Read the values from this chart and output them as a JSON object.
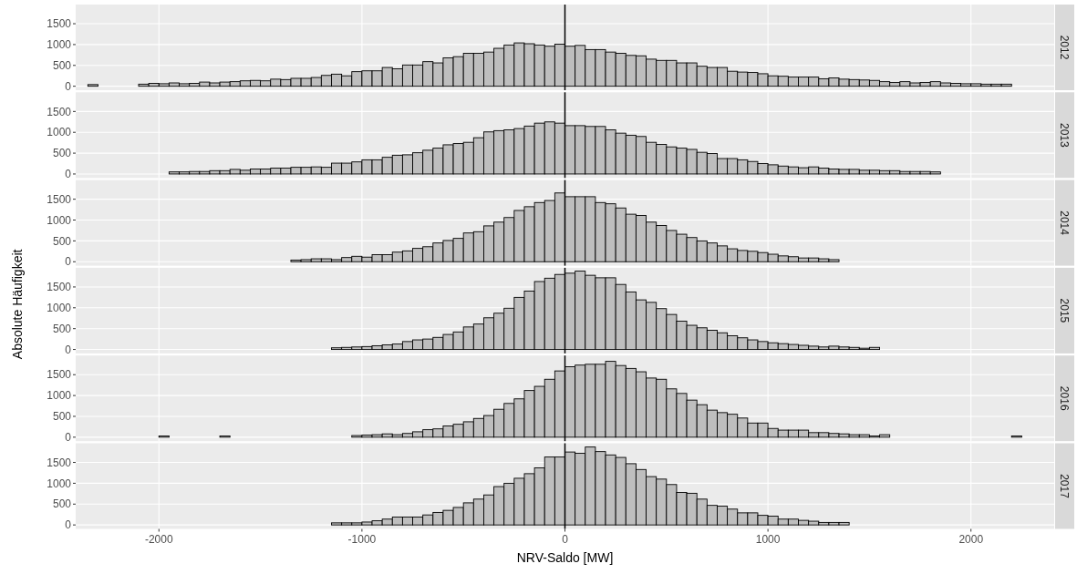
{
  "chart_data": [
    {
      "type": "histogram",
      "title": "2012",
      "color": "#bebebe",
      "tick_labels": "y",
      "grid": true,
      "xlim": [
        -2410,
        2410
      ],
      "ylim": [
        -95,
        1960
      ],
      "xticks": [
        -2000,
        -1000,
        0,
        1000,
        2000
      ],
      "yticks": [
        0,
        500,
        1000,
        1500
      ],
      "ref_lines": [
        {
          "axis": "x",
          "value": 0,
          "color": "#000000"
        }
      ],
      "bins": [
        -2400,
        -2350,
        -2300,
        -2250,
        -2200,
        -2150,
        -2100,
        -2050,
        -2000,
        -1950,
        -1900,
        -1850,
        -1800,
        -1750,
        -1700,
        -1650,
        -1600,
        -1550,
        -1500,
        -1450,
        -1400,
        -1350,
        -1300,
        -1250,
        -1200,
        -1150,
        -1100,
        -1050,
        -1000,
        -950,
        -900,
        -850,
        -800,
        -750,
        -700,
        -650,
        -600,
        -550,
        -500,
        -450,
        -400,
        -350,
        -300,
        -250,
        -200,
        -150,
        -100,
        -50,
        0,
        50,
        100,
        150,
        200,
        250,
        300,
        350,
        400,
        450,
        500,
        550,
        600,
        650,
        700,
        750,
        800,
        850,
        900,
        950,
        1000,
        1050,
        1100,
        1150,
        1200,
        1250,
        1300,
        1350,
        1400,
        1450,
        1500,
        1550,
        1600,
        1650,
        1700,
        1750,
        1800,
        1850,
        1900,
        1950,
        2000,
        2050,
        2100,
        2150,
        2200,
        2250,
        2300,
        2350,
        2400
      ],
      "values": [
        0,
        40,
        0,
        0,
        0,
        0,
        50,
        70,
        60,
        80,
        60,
        70,
        100,
        80,
        100,
        110,
        130,
        140,
        130,
        170,
        160,
        190,
        190,
        210,
        260,
        290,
        250,
        350,
        370,
        370,
        450,
        420,
        510,
        510,
        590,
        560,
        680,
        710,
        790,
        790,
        820,
        910,
        990,
        1040,
        1020,
        990,
        960,
        1010,
        960,
        980,
        880,
        880,
        820,
        790,
        740,
        730,
        650,
        620,
        620,
        560,
        560,
        480,
        450,
        450,
        360,
        340,
        330,
        300,
        250,
        240,
        220,
        220,
        220,
        180,
        200,
        170,
        160,
        150,
        140,
        110,
        90,
        110,
        80,
        90,
        110,
        80,
        70,
        60,
        60,
        50,
        50,
        50,
        0,
        0,
        0,
        0
      ]
    },
    {
      "type": "histogram",
      "title": "2013",
      "color": "#bebebe",
      "tick_labels": "y",
      "grid": true,
      "xlim": [
        -2410,
        2410
      ],
      "ylim": [
        -95,
        1960
      ],
      "xticks": [
        -2000,
        -1000,
        0,
        1000,
        2000
      ],
      "yticks": [
        0,
        500,
        1000,
        1500
      ],
      "ref_lines": [
        {
          "axis": "x",
          "value": 0,
          "color": "#000000"
        }
      ],
      "bins": [
        -2400,
        -2350,
        -2300,
        -2250,
        -2200,
        -2150,
        -2100,
        -2050,
        -2000,
        -1950,
        -1900,
        -1850,
        -1800,
        -1750,
        -1700,
        -1650,
        -1600,
        -1550,
        -1500,
        -1450,
        -1400,
        -1350,
        -1300,
        -1250,
        -1200,
        -1150,
        -1100,
        -1050,
        -1000,
        -950,
        -900,
        -850,
        -800,
        -750,
        -700,
        -650,
        -600,
        -550,
        -500,
        -450,
        -400,
        -350,
        -300,
        -250,
        -200,
        -150,
        -100,
        -50,
        0,
        50,
        100,
        150,
        200,
        250,
        300,
        350,
        400,
        450,
        500,
        550,
        600,
        650,
        700,
        750,
        800,
        850,
        900,
        950,
        1000,
        1050,
        1100,
        1150,
        1200,
        1250,
        1300,
        1350,
        1400,
        1450,
        1500,
        1550,
        1600,
        1650,
        1700,
        1750,
        1800,
        1850,
        1900,
        1950,
        2000,
        2050,
        2100,
        2150,
        2200,
        2250,
        2300,
        2350,
        2400
      ],
      "values": [
        0,
        0,
        0,
        0,
        0,
        0,
        0,
        0,
        0,
        50,
        50,
        60,
        60,
        80,
        80,
        110,
        90,
        120,
        120,
        140,
        140,
        160,
        160,
        170,
        160,
        260,
        260,
        290,
        340,
        340,
        400,
        450,
        460,
        510,
        570,
        620,
        700,
        730,
        760,
        870,
        1010,
        1040,
        1060,
        1090,
        1150,
        1220,
        1250,
        1220,
        1160,
        1160,
        1140,
        1140,
        1060,
        980,
        930,
        900,
        760,
        710,
        650,
        620,
        590,
        520,
        490,
        370,
        370,
        340,
        300,
        250,
        220,
        190,
        170,
        150,
        170,
        140,
        120,
        110,
        110,
        90,
        90,
        80,
        80,
        60,
        60,
        60,
        50,
        0,
        0,
        0,
        0,
        0,
        0,
        0,
        0,
        0,
        0,
        0
      ]
    },
    {
      "type": "histogram",
      "title": "2014",
      "color": "#bebebe",
      "tick_labels": "y",
      "grid": true,
      "xlim": [
        -2410,
        2410
      ],
      "ylim": [
        -95,
        1960
      ],
      "xticks": [
        -2000,
        -1000,
        0,
        1000,
        2000
      ],
      "yticks": [
        0,
        500,
        1000,
        1500
      ],
      "ref_lines": [
        {
          "axis": "x",
          "value": 0,
          "color": "#000000"
        }
      ],
      "bins": [
        -2400,
        -2350,
        -2300,
        -2250,
        -2200,
        -2150,
        -2100,
        -2050,
        -2000,
        -1950,
        -1900,
        -1850,
        -1800,
        -1750,
        -1700,
        -1650,
        -1600,
        -1550,
        -1500,
        -1450,
        -1400,
        -1350,
        -1300,
        -1250,
        -1200,
        -1150,
        -1100,
        -1050,
        -1000,
        -950,
        -900,
        -850,
        -800,
        -750,
        -700,
        -650,
        -600,
        -550,
        -500,
        -450,
        -400,
        -350,
        -300,
        -250,
        -200,
        -150,
        -100,
        -50,
        0,
        50,
        100,
        150,
        200,
        250,
        300,
        350,
        400,
        450,
        500,
        550,
        600,
        650,
        700,
        750,
        800,
        850,
        900,
        950,
        1000,
        1050,
        1100,
        1150,
        1200,
        1250,
        1300,
        1350,
        1400,
        1450,
        1500,
        1550,
        1600,
        1650,
        1700,
        1750,
        1800,
        1850,
        1900,
        1950,
        2000,
        2050,
        2100,
        2150,
        2200,
        2250,
        2300,
        2350,
        2400
      ],
      "values": [
        0,
        0,
        0,
        0,
        0,
        0,
        0,
        0,
        0,
        0,
        0,
        0,
        0,
        0,
        0,
        0,
        0,
        0,
        0,
        0,
        0,
        40,
        50,
        70,
        70,
        50,
        100,
        130,
        110,
        170,
        170,
        230,
        260,
        320,
        360,
        450,
        510,
        560,
        690,
        720,
        860,
        950,
        1060,
        1230,
        1320,
        1420,
        1470,
        1650,
        1560,
        1560,
        1560,
        1420,
        1390,
        1290,
        1140,
        1110,
        950,
        870,
        750,
        660,
        580,
        500,
        450,
        380,
        310,
        270,
        250,
        220,
        180,
        140,
        120,
        90,
        90,
        70,
        50,
        0,
        0,
        0,
        0,
        0,
        0,
        0,
        0,
        0,
        0,
        0,
        0,
        0,
        0,
        0,
        0,
        0,
        0,
        0,
        0,
        0
      ]
    },
    {
      "type": "histogram",
      "title": "2015",
      "ylabel": "Absolute Häufigkeit",
      "color": "#bebebe",
      "tick_labels": "y",
      "grid": true,
      "xlim": [
        -2410,
        2410
      ],
      "ylim": [
        -95,
        1960
      ],
      "xticks": [
        -2000,
        -1000,
        0,
        1000,
        2000
      ],
      "yticks": [
        0,
        500,
        1000,
        1500
      ],
      "ref_lines": [
        {
          "axis": "x",
          "value": 0,
          "color": "#000000"
        }
      ],
      "bins": [
        -2400,
        -2350,
        -2300,
        -2250,
        -2200,
        -2150,
        -2100,
        -2050,
        -2000,
        -1950,
        -1900,
        -1850,
        -1800,
        -1750,
        -1700,
        -1650,
        -1600,
        -1550,
        -1500,
        -1450,
        -1400,
        -1350,
        -1300,
        -1250,
        -1200,
        -1150,
        -1100,
        -1050,
        -1000,
        -950,
        -900,
        -850,
        -800,
        -750,
        -700,
        -650,
        -600,
        -550,
        -500,
        -450,
        -400,
        -350,
        -300,
        -250,
        -200,
        -150,
        -100,
        -50,
        0,
        50,
        100,
        150,
        200,
        250,
        300,
        350,
        400,
        450,
        500,
        550,
        600,
        650,
        700,
        750,
        800,
        850,
        900,
        950,
        1000,
        1050,
        1100,
        1150,
        1200,
        1250,
        1300,
        1350,
        1400,
        1450,
        1500,
        1550,
        1600,
        1650,
        1700,
        1750,
        1800,
        1850,
        1900,
        1950,
        2000,
        2050,
        2100,
        2150,
        2200,
        2250,
        2300,
        2350,
        2400
      ],
      "values": [
        0,
        0,
        0,
        0,
        0,
        0,
        0,
        0,
        0,
        0,
        0,
        0,
        0,
        0,
        0,
        0,
        0,
        0,
        0,
        0,
        0,
        0,
        0,
        0,
        0,
        40,
        50,
        60,
        70,
        90,
        110,
        130,
        190,
        230,
        250,
        290,
        360,
        420,
        540,
        610,
        760,
        870,
        990,
        1250,
        1400,
        1630,
        1710,
        1800,
        1830,
        1880,
        1780,
        1720,
        1720,
        1560,
        1380,
        1190,
        1130,
        980,
        840,
        680,
        580,
        520,
        460,
        400,
        330,
        280,
        230,
        190,
        160,
        140,
        120,
        100,
        80,
        60,
        80,
        60,
        50,
        30,
        50,
        0,
        0,
        0,
        0,
        0,
        0,
        0,
        0,
        0,
        0,
        0,
        0,
        0,
        0,
        0,
        0,
        0
      ]
    },
    {
      "type": "histogram",
      "title": "2016",
      "color": "#bebebe",
      "tick_labels": "y",
      "grid": true,
      "xlim": [
        -2410,
        2410
      ],
      "ylim": [
        -95,
        1960
      ],
      "xticks": [
        -2000,
        -1000,
        0,
        1000,
        2000
      ],
      "yticks": [
        0,
        500,
        1000,
        1500
      ],
      "ref_lines": [
        {
          "axis": "x",
          "value": 0,
          "color": "#000000"
        }
      ],
      "bins": [
        -2400,
        -2350,
        -2300,
        -2250,
        -2200,
        -2150,
        -2100,
        -2050,
        -2000,
        -1950,
        -1900,
        -1850,
        -1800,
        -1750,
        -1700,
        -1650,
        -1600,
        -1550,
        -1500,
        -1450,
        -1400,
        -1350,
        -1300,
        -1250,
        -1200,
        -1150,
        -1100,
        -1050,
        -1000,
        -950,
        -900,
        -850,
        -800,
        -750,
        -700,
        -650,
        -600,
        -550,
        -500,
        -450,
        -400,
        -350,
        -300,
        -250,
        -200,
        -150,
        -100,
        -50,
        0,
        50,
        100,
        150,
        200,
        250,
        300,
        350,
        400,
        450,
        500,
        550,
        600,
        650,
        700,
        750,
        800,
        850,
        900,
        950,
        1000,
        1050,
        1100,
        1150,
        1200,
        1250,
        1300,
        1350,
        1400,
        1450,
        1500,
        1550,
        1600,
        1650,
        1700,
        1750,
        1800,
        1850,
        1900,
        1950,
        2000,
        2050,
        2100,
        2150,
        2200,
        2250,
        2300,
        2350,
        2400
      ],
      "values": [
        0,
        0,
        0,
        0,
        0,
        0,
        0,
        0,
        30,
        0,
        0,
        0,
        0,
        0,
        30,
        0,
        0,
        0,
        0,
        0,
        0,
        0,
        0,
        0,
        0,
        0,
        0,
        40,
        50,
        60,
        80,
        60,
        90,
        130,
        180,
        200,
        270,
        310,
        370,
        450,
        520,
        670,
        810,
        920,
        1120,
        1220,
        1390,
        1590,
        1690,
        1730,
        1750,
        1750,
        1820,
        1720,
        1650,
        1570,
        1420,
        1390,
        1160,
        1050,
        890,
        780,
        650,
        590,
        550,
        460,
        340,
        340,
        210,
        170,
        170,
        170,
        110,
        110,
        90,
        80,
        60,
        60,
        30,
        60,
        0,
        0,
        0,
        0,
        0,
        0,
        0,
        0,
        0,
        0,
        0,
        0,
        30,
        0,
        0,
        0
      ]
    },
    {
      "type": "histogram",
      "title": "2017",
      "xlabel": "NRV-Saldo [MW]",
      "color": "#bebebe",
      "grid": true,
      "xlim": [
        -2410,
        2410
      ],
      "ylim": [
        -95,
        1960
      ],
      "xticks": [
        -2000,
        -1000,
        0,
        1000,
        2000
      ],
      "yticks": [
        0,
        500,
        1000,
        1500
      ],
      "ref_lines": [
        {
          "axis": "x",
          "value": 0,
          "color": "#000000"
        }
      ],
      "bins": [
        -2400,
        -2350,
        -2300,
        -2250,
        -2200,
        -2150,
        -2100,
        -2050,
        -2000,
        -1950,
        -1900,
        -1850,
        -1800,
        -1750,
        -1700,
        -1650,
        -1600,
        -1550,
        -1500,
        -1450,
        -1400,
        -1350,
        -1300,
        -1250,
        -1200,
        -1150,
        -1100,
        -1050,
        -1000,
        -950,
        -900,
        -850,
        -800,
        -750,
        -700,
        -650,
        -600,
        -550,
        -500,
        -450,
        -400,
        -350,
        -300,
        -250,
        -200,
        -150,
        -100,
        -50,
        0,
        50,
        100,
        150,
        200,
        250,
        300,
        350,
        400,
        450,
        500,
        550,
        600,
        650,
        700,
        750,
        800,
        850,
        900,
        950,
        1000,
        1050,
        1100,
        1150,
        1200,
        1250,
        1300,
        1350,
        1400,
        1450,
        1500,
        1550,
        1600,
        1650,
        1700,
        1750,
        1800,
        1850,
        1900,
        1950,
        2000,
        2050,
        2100,
        2150,
        2200,
        2250,
        2300,
        2350,
        2400
      ],
      "values": [
        0,
        0,
        0,
        0,
        0,
        0,
        0,
        0,
        0,
        0,
        0,
        0,
        0,
        0,
        0,
        0,
        0,
        0,
        0,
        0,
        0,
        0,
        0,
        0,
        0,
        50,
        50,
        50,
        70,
        100,
        140,
        190,
        190,
        190,
        240,
        300,
        350,
        420,
        530,
        620,
        720,
        920,
        1000,
        1120,
        1230,
        1370,
        1630,
        1630,
        1750,
        1720,
        1870,
        1760,
        1680,
        1620,
        1470,
        1330,
        1160,
        1100,
        970,
        780,
        760,
        620,
        470,
        450,
        380,
        290,
        290,
        230,
        210,
        140,
        140,
        110,
        90,
        60,
        60,
        60,
        0,
        0,
        0,
        0,
        0,
        0,
        0,
        0,
        0,
        0,
        0,
        0,
        0,
        0,
        0,
        0,
        0,
        0,
        0,
        0
      ]
    }
  ]
}
